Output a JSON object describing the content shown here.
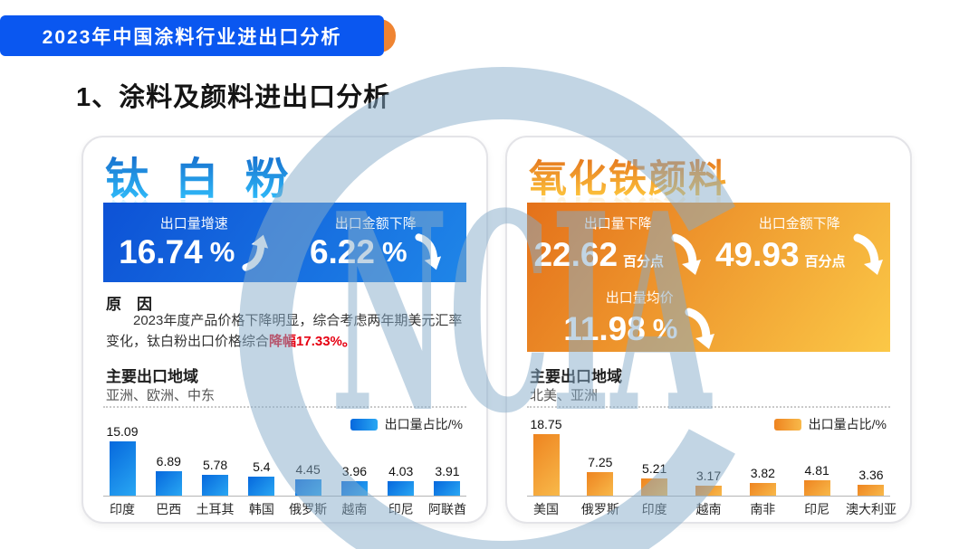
{
  "header": {
    "ribbon_title": "2023年中国涂料行业进出口分析",
    "ribbon_color": "#0a57f0",
    "fold_color": "#ef8432"
  },
  "section_title": "1、涂料及颜料进出口分析",
  "watermark": {
    "text": "NCIA",
    "color": "#86abc9"
  },
  "panels": [
    {
      "title": "钛 白 粉",
      "title_gradient": [
        "#1466c8",
        "#2fb9f8"
      ],
      "box_gradient": [
        "#0d52d6",
        "#1f86e8"
      ],
      "stats": [
        {
          "label": "出口量增速",
          "value": "16.74",
          "unit": "%",
          "direction": "up"
        },
        {
          "label": "出口金额下降",
          "value": "6.22",
          "unit": "%",
          "direction": "down"
        }
      ],
      "reason_heading": "原　因",
      "reason_text": "2023年度产品价格下降明显，综合考虑两年期美元汇率变化，钛白粉出口价格综合",
      "reason_highlight": "降幅17.33%。",
      "regions_heading": "主要出口地域",
      "regions": "亚洲、欧洲、中东"
    },
    {
      "title": "氧化铁颜料",
      "title_gradient": [
        "#e2701c",
        "#fdc33b"
      ],
      "box_gradient": [
        "#e4711a",
        "#fbc847"
      ],
      "stats": [
        {
          "label": "出口量下降",
          "value": "22.62",
          "unit": "百分点",
          "direction": "down"
        },
        {
          "label": "出口金额下降",
          "value": "49.93",
          "unit": "百分点",
          "direction": "down"
        },
        {
          "label": "出口量均价",
          "value": "11.98",
          "unit": "%",
          "direction": "down"
        }
      ],
      "regions_heading": "主要出口地域",
      "regions": "北美、亚洲"
    }
  ],
  "chart_data": [
    {
      "type": "bar",
      "title": "钛白粉主要出口地域出口量占比",
      "legend": "出口量占比/%",
      "legend_position": "top-right",
      "categories": [
        "印度",
        "巴西",
        "土耳其",
        "韩国",
        "俄罗斯",
        "越南",
        "印尼",
        "阿联酋"
      ],
      "values": [
        15.09,
        6.89,
        5.78,
        5.4,
        4.45,
        3.96,
        4.03,
        3.91
      ],
      "unit": "%",
      "ylim": [
        0,
        16
      ],
      "grid": false,
      "bar_colors": [
        "#0668dd",
        "#29a7f3"
      ]
    },
    {
      "type": "bar",
      "title": "氧化铁颜料主要出口地域出口量占比",
      "legend": "出口量占比/%",
      "legend_position": "top-right",
      "categories": [
        "美国",
        "俄罗斯",
        "印度",
        "越南",
        "南非",
        "印尼",
        "澳大利亚"
      ],
      "values": [
        18.75,
        7.25,
        5.21,
        3.17,
        3.82,
        4.81,
        3.36
      ],
      "unit": "%",
      "ylim": [
        0,
        20
      ],
      "grid": false,
      "bar_colors": [
        "#ee8420",
        "#f8b94a"
      ]
    }
  ]
}
